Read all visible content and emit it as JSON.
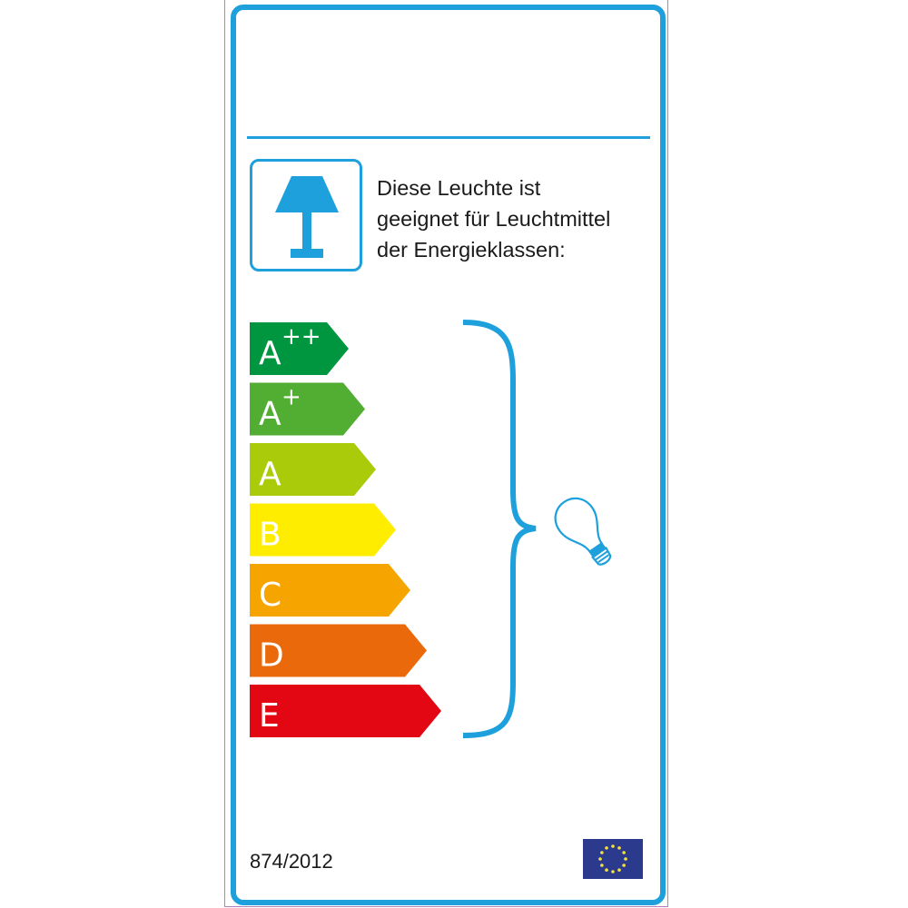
{
  "label": {
    "description_lines": [
      "Diese Leuchte ist",
      "geeignet für Leuchtmittel",
      "der Energieklassen:"
    ],
    "regulation": "874/2012",
    "frame_color": "#1ea0dc",
    "lamp_icon": "table-lamp-icon",
    "bulb_icon": "light-bulb-icon",
    "flag_icon": "eu-flag-icon",
    "classes": [
      {
        "letter": "A",
        "sup": "++",
        "color": "#009640"
      },
      {
        "letter": "A",
        "sup": "+",
        "color": "#52ae32"
      },
      {
        "letter": "A",
        "sup": "",
        "color": "#aacb0a"
      },
      {
        "letter": "B",
        "sup": "",
        "color": "#ffed00"
      },
      {
        "letter": "C",
        "sup": "",
        "color": "#f6a500"
      },
      {
        "letter": "D",
        "sup": "",
        "color": "#ea690b"
      },
      {
        "letter": "E",
        "sup": "",
        "color": "#e30613"
      }
    ]
  }
}
